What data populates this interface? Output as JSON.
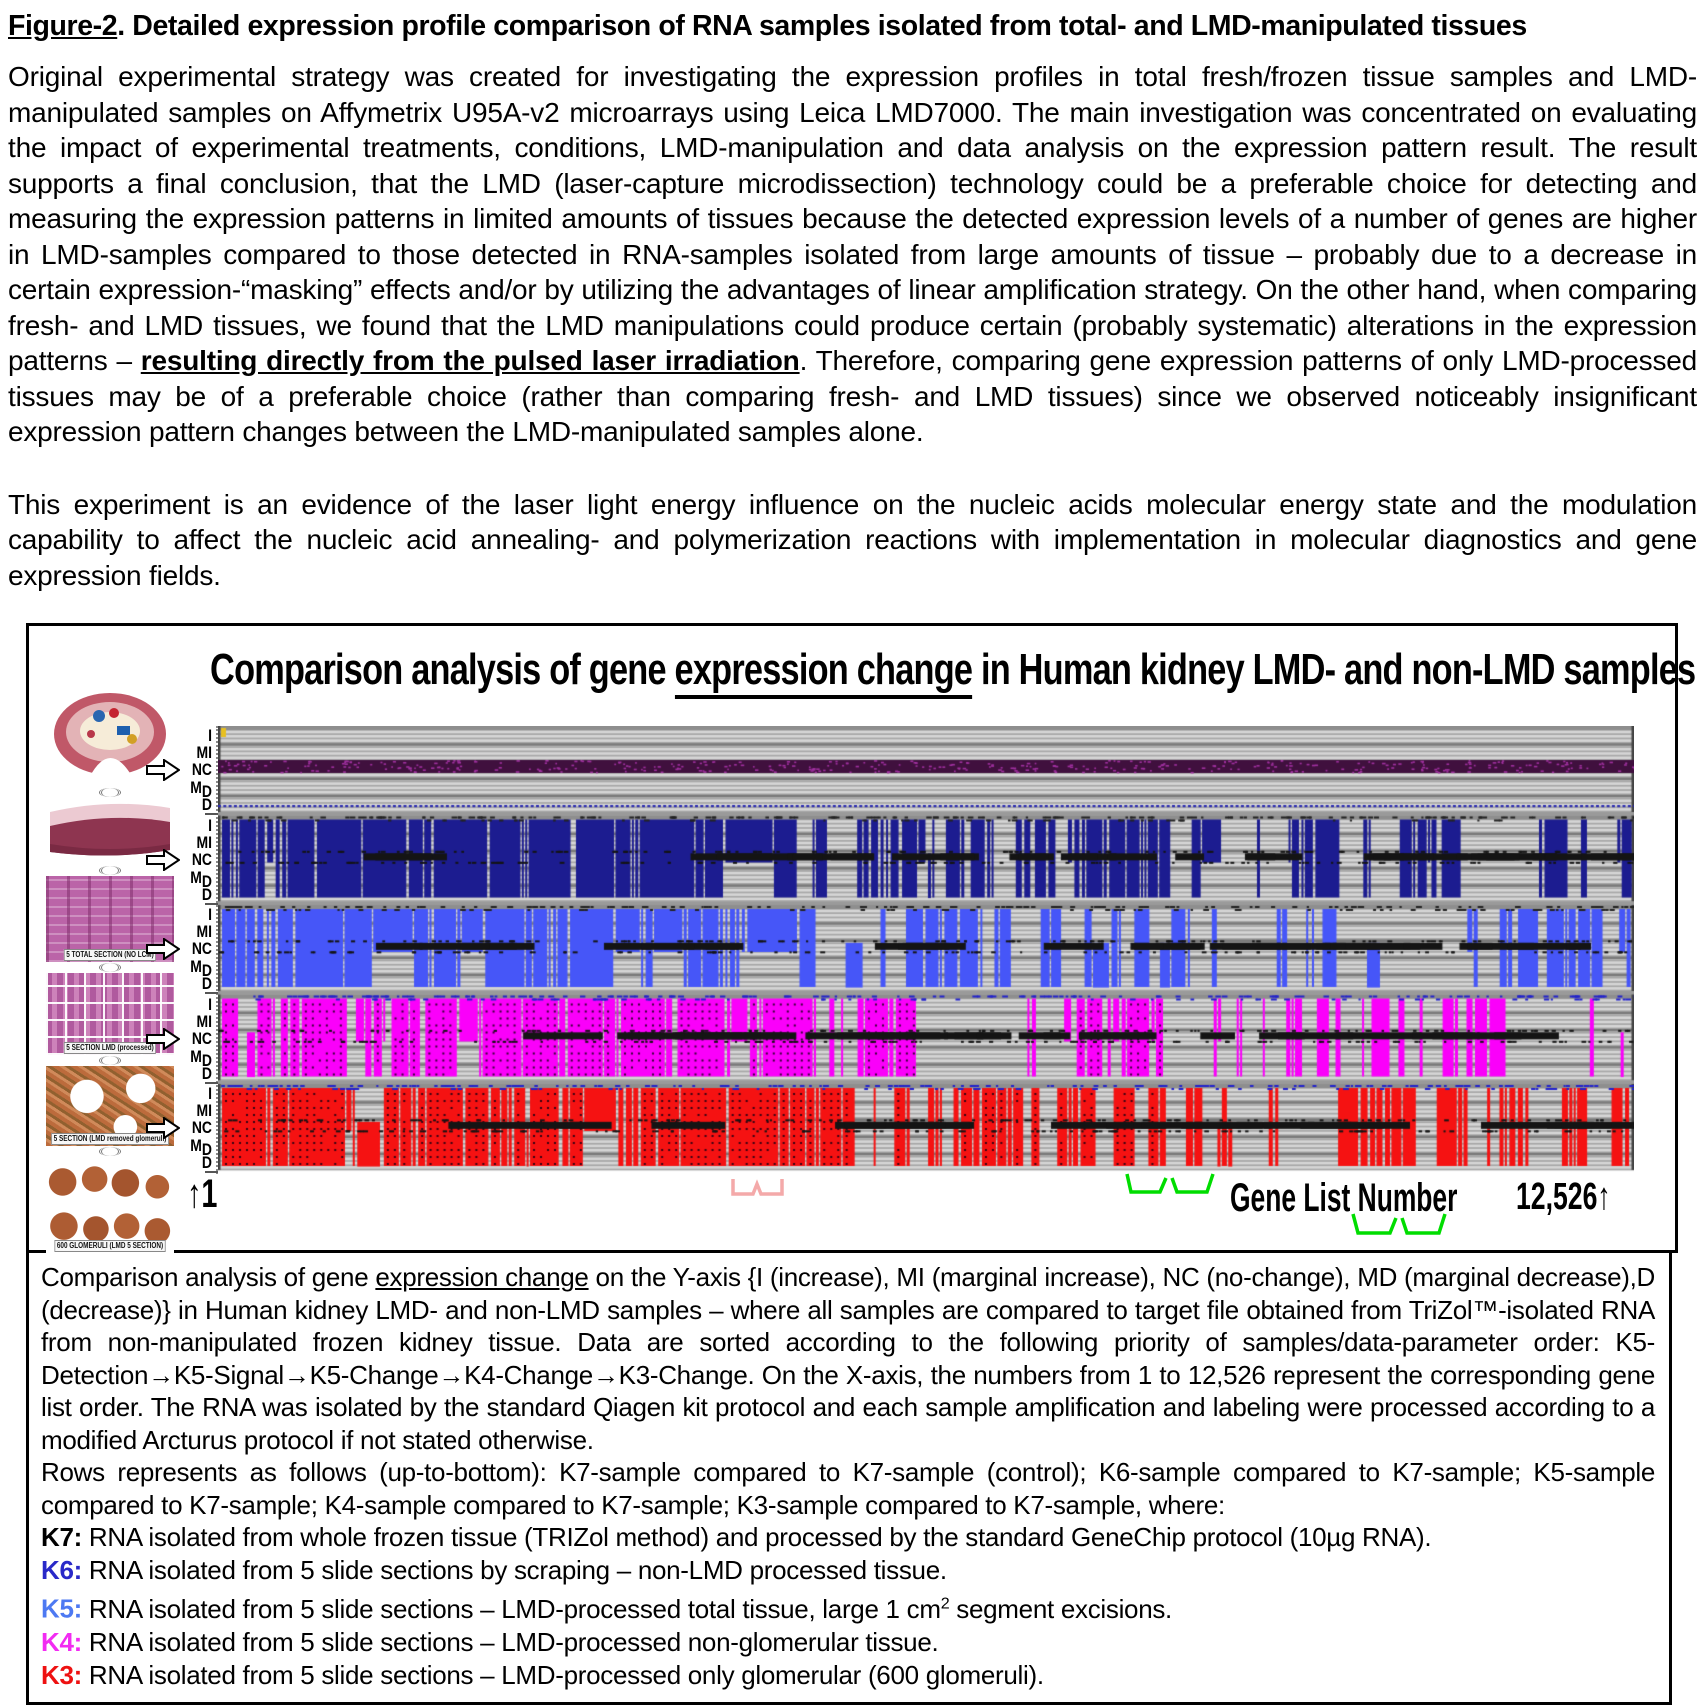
{
  "page": {
    "heading": [
      {
        "t": "Figure-2",
        "b": true,
        "u": true
      },
      {
        "t": ". Detailed expression profile comparison of RNA samples isolated from total- and LMD-manipulated tissues",
        "b": true
      }
    ],
    "para1": [
      {
        "t": "Original experimental strategy was created for investigating the expression profiles in total fresh/frozen tissue samples and LMD-manipulated samples on Affymetrix U95A-v2 microarrays using Leica LMD7000. The main investigation was concentrated on evaluating the impact of experimental treatments, conditions, LMD-manipulation and data analysis on the expression pattern result. The result supports a final conclusion, that the LMD (laser-capture microdissection) technology could be a preferable choice for detecting and measuring the expression patterns in limited amounts of tissues because the detected expression levels of a number of genes are higher in LMD-samples compared to those detected in RNA-samples isolated from large amounts of tissue – probably due to a decrease in certain expression-“masking” effects and/or by utilizing the advantages of linear amplification strategy. On the other hand, when comparing fresh- and LMD tissues, we found that the LMD manipulations could produce certain (probably systematic) alterations in the expression patterns – "
      },
      {
        "t": "resulting directly from the pulsed laser irradiation",
        "b": true,
        "u": true
      },
      {
        "t": ". Therefore, comparing gene expression patterns of only LMD-processed tissues may be of a preferable choice (rather than comparing fresh- and LMD tissues) since we observed noticeably insignificant expression pattern changes between the LMD-manipulated samples alone."
      }
    ],
    "para2": [
      {
        "t": "This experiment is an evidence of the laser light energy influence on the nucleic acids molecular energy state and the modulation capability to affect the nucleic acid annealing- and polymerization reactions with implementation in molecular diagnostics and gene expression fields."
      }
    ]
  },
  "figure": {
    "title": [
      {
        "t": "Comparison analysis of gene "
      },
      {
        "t": "expression change",
        "u": true
      },
      {
        "t": " in Human kidney LMD- and non-LMD samples"
      }
    ],
    "y_axis_labels": [
      "I",
      "MI",
      "NC",
      "MD",
      "D"
    ],
    "x_start_marker": "↑1",
    "x_axis_label": "Gene List Number",
    "x_end_marker": "12,526↑",
    "thumbnails": [
      {
        "name": "kidney-illustration",
        "label": ""
      },
      {
        "name": "frozen-tissue-block",
        "label": ""
      },
      {
        "name": "total-section",
        "label": "5 TOTAL SECTION (NO LCM)"
      },
      {
        "name": "lmd-grid-section",
        "label": "5 SECTION LMD (processed)"
      },
      {
        "name": "non-glomerular-section",
        "label": "5 SECTION (LMD removed glomeruli)"
      },
      {
        "name": "glomeruli-sections",
        "label": "600 GLOMERULI (LMD 5 SECTION)"
      }
    ],
    "chart_data": {
      "type": "heatmap",
      "title": "Comparison analysis of gene expression change in Human kidney LMD- and non-LMD samples",
      "x_axis": {
        "label": "Gene List Number",
        "start": 1,
        "end": 12526
      },
      "y_levels": [
        "I",
        "MI",
        "NC",
        "MD",
        "D"
      ],
      "sort_order": "K5-Detection→K5-Signal→K5-Change→K4-Change→K3-Change",
      "seed": 11,
      "background": {
        "stripe_light": "#d6d6d6",
        "stripe_line": "#a6a6a6",
        "separator": "#7a7a7a",
        "row_top": "#8e8e8e",
        "gap": "#9a9a9a"
      },
      "rows": [
        {
          "comparison": "K7-sample compared to K7-sample (control)",
          "color": "#40103e",
          "pattern": "nc-band",
          "description": "solid dark-purple no-change band across all genes; thin navy dotted line near D level"
        },
        {
          "comparison": "K6-sample compared to K7-sample",
          "color": "#1c1c90",
          "pattern": "bars",
          "dots": false,
          "densities": [
            0.93,
            0.6,
            0.42
          ],
          "description": "dense navy change-calls, black NC dashes"
        },
        {
          "comparison": "K5-sample compared to K7-sample",
          "color": "#4656f8",
          "pattern": "bars",
          "dots": false,
          "densities": [
            0.9,
            0.55,
            0.4
          ],
          "description": "dense bright-blue change-calls, black NC dashes"
        },
        {
          "comparison": "K4-sample compared to K7-sample",
          "color": "#fa00fa",
          "pattern": "bars",
          "dots": true,
          "densities": [
            0.88,
            0.58,
            0.46
          ],
          "description": "dense magenta change-calls with dotted texture, black NC dashes"
        },
        {
          "comparison": "K3-sample compared to K7-sample",
          "color": "#f51212",
          "pattern": "bars",
          "dots": true,
          "densities": [
            0.92,
            0.62,
            0.5
          ],
          "description": "dense red change-calls with dotted texture, black NC dashes"
        }
      ]
    }
  },
  "caption": {
    "p1": [
      {
        "t": "Comparison analysis of gene "
      },
      {
        "t": "expression change",
        "u": true
      },
      {
        "t": " on the Y-axis {I (increase), MI (marginal increase), NC (no-change), MD (marginal decrease),D (decrease)} in Human kidney LMD- and non-LMD samples – where all samples are compared to target file obtained from TriZol™-isolated RNA from non-manipulated frozen kidney tissue. Data are sorted according to the following priority of samples/data-parameter order: K5-Detection→K5-Signal→K5-Change→K4-Change→K3-Change. On the X-axis, the numbers from 1 to 12,526 represent the corresponding gene list order. The RNA was isolated by the standard Qiagen kit protocol and each sample amplification and labeling were processed according to a modified Arcturus protocol if not stated otherwise."
      }
    ],
    "p2": [
      {
        "t": "Rows represents as follows (up-to-bottom): K7-sample compared to K7-sample (control); K6-sample compared to K7-sample; K5-sample compared to K7-sample; K4-sample compared to K7-sample; K3-sample compared to K7-sample, where:"
      }
    ],
    "items": [
      {
        "key": "K7:",
        "color": "#000000",
        "segs": [
          {
            "t": " RNA isolated from whole frozen tissue (TRIZol method) and processed by the standard GeneChip protocol (10µg RNA)."
          }
        ]
      },
      {
        "key": "K6:",
        "color": "#2929c8",
        "segs": [
          {
            "t": " RNA isolated from 5 slide sections by scraping – non-LMD processed tissue."
          }
        ]
      },
      {
        "key": "K5:",
        "color": "#4d79f2",
        "segs": [
          {
            "t": " RNA isolated from 5 slide sections – LMD-processed total tissue, large 1 cm"
          },
          {
            "t": "2",
            "sup": true
          },
          {
            "t": " segment excisions."
          }
        ]
      },
      {
        "key": "K4:",
        "color": "#f22bf2",
        "segs": [
          {
            "t": " RNA isolated from 5 slide sections – LMD-processed non-glomerular tissue."
          }
        ]
      },
      {
        "key": "K3:",
        "color": "#ee1111",
        "segs": [
          {
            "t": " RNA isolated from 5 slide sections – LMD-processed only glomerular (600 glomeruli)."
          }
        ]
      }
    ]
  }
}
